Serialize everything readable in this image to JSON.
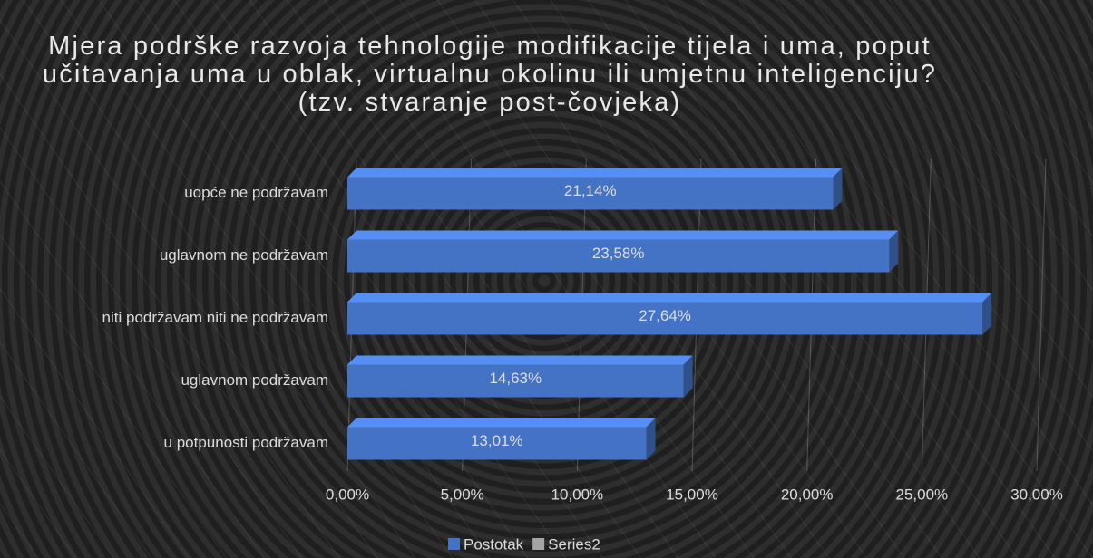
{
  "chart_data": {
    "type": "bar",
    "orientation": "horizontal",
    "title": "Mjera podrške razvoja tehnologije modifikacije tijela i uma, poput učitavanja uma u oblak, virtualnu okolinu ili umjetnu inteligenciju? (tzv. stvaranje post-čovjeka)",
    "categories": [
      "uopće ne podržavam",
      "uglavnom ne podržavam",
      "niti podržavam niti ne podržavam",
      "uglavnom podržavam",
      "u potpunosti podržavam"
    ],
    "series": [
      {
        "name": "Postotak",
        "color": "#4472c4",
        "values": [
          21.14,
          23.58,
          27.64,
          14.63,
          13.01
        ],
        "value_labels": [
          "21,14%",
          "23,58%",
          "27,64%",
          "14,63%",
          "13,01%"
        ]
      },
      {
        "name": "Series2",
        "color": "#a5a5a5",
        "values": [
          null,
          null,
          null,
          null,
          null
        ]
      }
    ],
    "xlim": [
      0,
      30
    ],
    "xticks": [
      {
        "value": 0,
        "label": "0,00%"
      },
      {
        "value": 5,
        "label": "5,00%"
      },
      {
        "value": 10,
        "label": "10,00%"
      },
      {
        "value": 15,
        "label": "15,00%"
      },
      {
        "value": 20,
        "label": "20,00%"
      },
      {
        "value": 25,
        "label": "25,00%"
      },
      {
        "value": 30,
        "label": "30,00%"
      }
    ],
    "grid": true,
    "legend": "bottom"
  }
}
